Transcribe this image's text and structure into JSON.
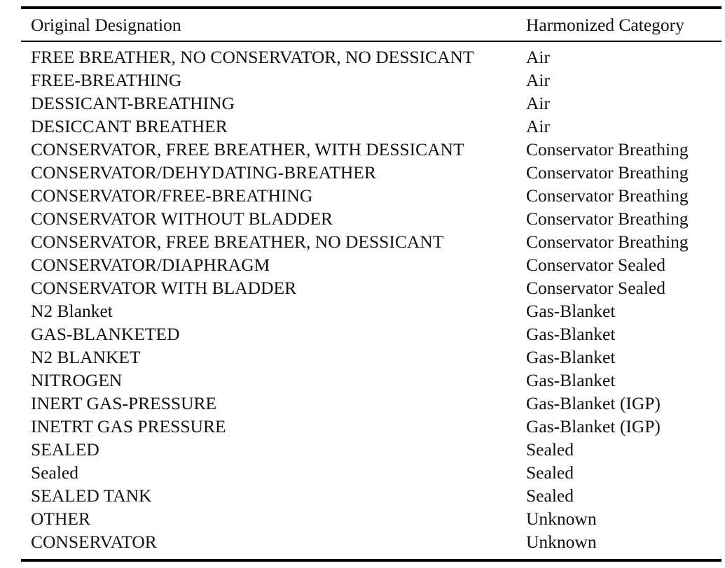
{
  "table": {
    "headers": [
      "Original Designation",
      "Harmonized Category"
    ],
    "rows": [
      [
        "FREE BREATHER, NO CONSERVATOR, NO DESSICANT",
        "Air"
      ],
      [
        "FREE-BREATHING",
        "Air"
      ],
      [
        "DESSICANT-BREATHING",
        "Air"
      ],
      [
        "DESICCANT BREATHER",
        "Air"
      ],
      [
        "CONSERVATOR, FREE BREATHER, WITH DESSICANT",
        "Conservator Breathing"
      ],
      [
        "CONSERVATOR/DEHYDATING-BREATHER",
        "Conservator Breathing"
      ],
      [
        "CONSERVATOR/FREE-BREATHING",
        "Conservator Breathing"
      ],
      [
        "CONSERVATOR WITHOUT BLADDER",
        "Conservator Breathing"
      ],
      [
        "CONSERVATOR, FREE BREATHER, NO DESSICANT",
        "Conservator Breathing"
      ],
      [
        "CONSERVATOR/DIAPHRAGM",
        "Conservator Sealed"
      ],
      [
        "CONSERVATOR WITH BLADDER",
        "Conservator Sealed"
      ],
      [
        "N2 Blanket",
        "Gas-Blanket"
      ],
      [
        "GAS-BLANKETED",
        "Gas-Blanket"
      ],
      [
        "N2 BLANKET",
        "Gas-Blanket"
      ],
      [
        "NITROGEN",
        "Gas-Blanket"
      ],
      [
        "INERT GAS-PRESSURE",
        "Gas-Blanket (IGP)"
      ],
      [
        "INETRT GAS PRESSURE",
        "Gas-Blanket (IGP)"
      ],
      [
        "SEALED",
        "Sealed"
      ],
      [
        "Sealed",
        "Sealed"
      ],
      [
        "SEALED TANK",
        "Sealed"
      ],
      [
        "OTHER",
        "Unknown"
      ],
      [
        "CONSERVATOR",
        "Unknown"
      ]
    ]
  }
}
